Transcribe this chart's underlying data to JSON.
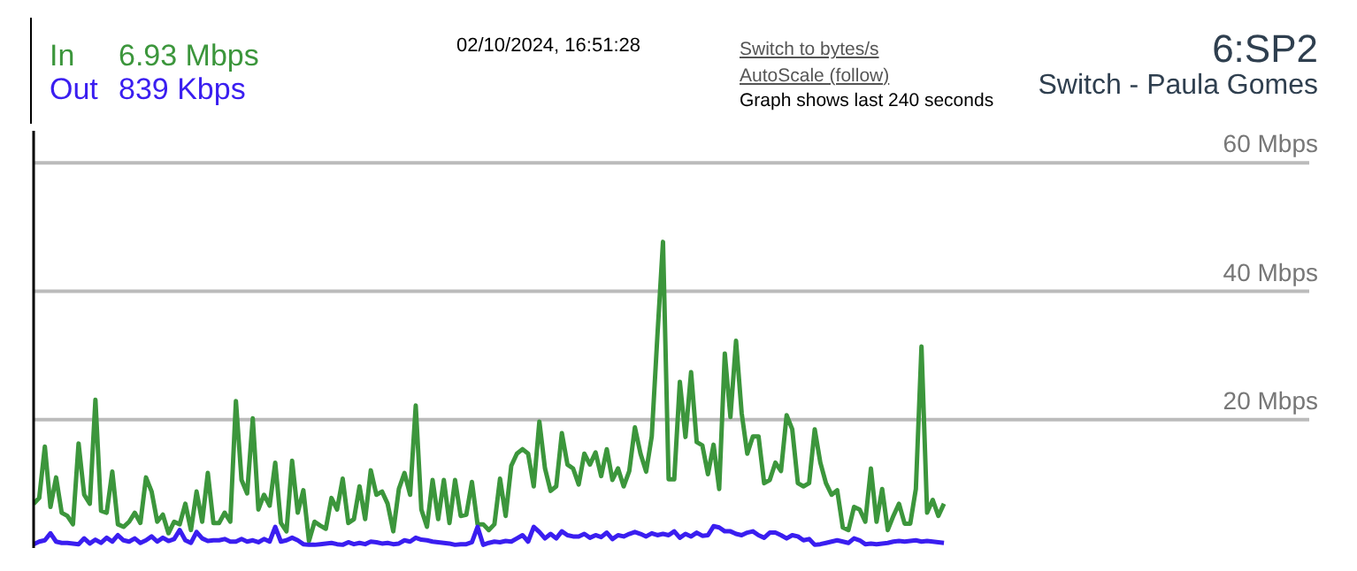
{
  "chart_data": {
    "type": "line",
    "title": "6:SP2",
    "subtitle": "Switch - Paula Gomes",
    "annotations": [
      "6.93 Mbps",
      "839 Kbps",
      "02/10/2024, 16:51:28",
      "Switch to bytes/s",
      "AutoScale (follow)",
      "Graph shows last 240 seconds"
    ],
    "categories": [
      null,
      null,
      null,
      null,
      null,
      null,
      null,
      null,
      null,
      null,
      null,
      null,
      null,
      null,
      null,
      null,
      null,
      null,
      null,
      null,
      null,
      null,
      null,
      null,
      null,
      null,
      null,
      null,
      null,
      null,
      null,
      null,
      null,
      null,
      null,
      null,
      null,
      null,
      null,
      null,
      null,
      null,
      null,
      null,
      null,
      null,
      null,
      null,
      null,
      null,
      null,
      null,
      null,
      null,
      null,
      null,
      null,
      null,
      null,
      null,
      null,
      null,
      null,
      null,
      null,
      null,
      null,
      null,
      null,
      null,
      null,
      null,
      null,
      null,
      null,
      null,
      null,
      null,
      null,
      null,
      null,
      null,
      null,
      null,
      null,
      null,
      null,
      null,
      null,
      null,
      null,
      null,
      null,
      null,
      null,
      null,
      null,
      null,
      null,
      null,
      null,
      null,
      null,
      null,
      null,
      null,
      null,
      null,
      null,
      null,
      null,
      null,
      null,
      null,
      null,
      null,
      null,
      null,
      null,
      null,
      null,
      null,
      null,
      null,
      null,
      null,
      null,
      null,
      null,
      null,
      null,
      null,
      null,
      null,
      null,
      null,
      null,
      null,
      null,
      null,
      null,
      null,
      null,
      null,
      null,
      null,
      null,
      null,
      null,
      null,
      null,
      null,
      null,
      null,
      null,
      null,
      null,
      null,
      null,
      null,
      null,
      null,
      null,
      null,
      null,
      null,
      null,
      null,
      null,
      null,
      null,
      null,
      null,
      null,
      null,
      null,
      null,
      null,
      null,
      null,
      null,
      null,
      null,
      null,
      null,
      null,
      null,
      null,
      null,
      null,
      null,
      null,
      null,
      null,
      null,
      null,
      null,
      null,
      null,
      null,
      null,
      null,
      null,
      null,
      null,
      null,
      null,
      null,
      null,
      null,
      null,
      null,
      null,
      null,
      null,
      null,
      null,
      null,
      null,
      null,
      null,
      null,
      null,
      null,
      null,
      null,
      null,
      null
    ],
    "series": [
      {
        "name": "In",
        "color": "#3c963c",
        "values": [
          6.9,
          7.8,
          15.8,
          6.4,
          11,
          5.5,
          5,
          3.7,
          16.3,
          8.3,
          6.9,
          23.1,
          5.8,
          5.5,
          11.9,
          3.7,
          3.3,
          4.1,
          5.5,
          3.9,
          11,
          8.8,
          4.1,
          5.2,
          2.3,
          4.1,
          3.7,
          6.9,
          2.8,
          8.8,
          4.1,
          11.7,
          3.9,
          3.9,
          5.5,
          4.1,
          22.9,
          10.6,
          8.5,
          20.2,
          6,
          8.3,
          6.6,
          13.3,
          3.9,
          2.6,
          13.6,
          5.5,
          9,
          1.1,
          4.1,
          3.5,
          3,
          7.8,
          6,
          10.8,
          3.9,
          4.5,
          9.6,
          4.5,
          12.1,
          8.3,
          8.8,
          6.9,
          2.6,
          9.2,
          11.7,
          8.3,
          22.2,
          6,
          3.3,
          10.6,
          4.5,
          10.6,
          3.9,
          10.6,
          5,
          5.2,
          10.3,
          3.7,
          3.7,
          2.8,
          3.7,
          10.8,
          5,
          12.8,
          14.7,
          15.4,
          14.7,
          9.6,
          19.7,
          12.4,
          8.9,
          9.6,
          17.9,
          13,
          12.4,
          9.9,
          14.7,
          13,
          14.9,
          11.2,
          15.4,
          10.6,
          12.4,
          9.6,
          12,
          18.8,
          14.7,
          11.9,
          17.4,
          33,
          47.7,
          10.7,
          10.7,
          25.9,
          17.3,
          27.4,
          16.5,
          16,
          11.5,
          16.1,
          9.2,
          30.3,
          20.4,
          32.3,
          21,
          14.7,
          17.4,
          17.4,
          10.1,
          10.6,
          13.3,
          12,
          20.7,
          18.5,
          10.1,
          9.6,
          10.1,
          18.5,
          13.3,
          10.1,
          8.3,
          9,
          3.2,
          2.8,
          6.4,
          6,
          4.1,
          12.4,
          4.1,
          9.2,
          2.8,
          5,
          6.9,
          3.8,
          3.8,
          9.2,
          31.4,
          5.5,
          7.5,
          5,
          6.9,
          null,
          null,
          null,
          null,
          null,
          null,
          null,
          null,
          null,
          null,
          null,
          null,
          null,
          null,
          null,
          null,
          null,
          null,
          null,
          null,
          null,
          null,
          null,
          null,
          null,
          null,
          null,
          null,
          null,
          null,
          null,
          null,
          null,
          null,
          null,
          null,
          null,
          null,
          null,
          null,
          null,
          null,
          null,
          null,
          null,
          null,
          null,
          null,
          null,
          null,
          null,
          null,
          null,
          null,
          null,
          null,
          null,
          null,
          null,
          null,
          null,
          null,
          null,
          null,
          null
        ]
      },
      {
        "name": "Out",
        "color": "#3a1ef0",
        "values": [
          0.6,
          1.0,
          1.2,
          2.3,
          1.0,
          0.8,
          0.8,
          0.7,
          0.6,
          1.5,
          0.7,
          1.3,
          0.8,
          1.6,
          1.0,
          2.0,
          1.2,
          1.0,
          1.5,
          0.8,
          1.2,
          1.8,
          1.0,
          1.6,
          1.1,
          1.4,
          2.8,
          1.2,
          0.8,
          2.5,
          1.5,
          1.1,
          1.2,
          1.2,
          1.4,
          1.0,
          1.0,
          1.4,
          1.0,
          1.2,
          0.9,
          1.4,
          1.0,
          3.3,
          1.0,
          1.2,
          1.6,
          1.2,
          0.6,
          0.5,
          0.5,
          0.6,
          0.7,
          0.8,
          0.6,
          0.5,
          0.9,
          0.6,
          0.8,
          0.6,
          1.0,
          0.9,
          0.7,
          0.8,
          0.6,
          0.7,
          1.2,
          1.0,
          1.6,
          1.3,
          1.2,
          1.0,
          0.9,
          0.8,
          0.7,
          0.5,
          0.6,
          0.6,
          0.9,
          3.3,
          0.5,
          0.8,
          1.0,
          0.9,
          1.1,
          1.0,
          1.5,
          2.0,
          1.0,
          3.3,
          2.5,
          1.5,
          2.2,
          1.5,
          2.6,
          2.0,
          1.8,
          1.8,
          2.2,
          1.6,
          2.0,
          1.7,
          2.4,
          1.4,
          2.0,
          1.8,
          2.2,
          2.5,
          2.2,
          1.8,
          2.3,
          2.0,
          2.2,
          2.0,
          2.6,
          1.6,
          2.2,
          1.8,
          2.4,
          1.9,
          2.0,
          3.4,
          3.2,
          2.6,
          2.6,
          2.2,
          2.0,
          2.4,
          2.6,
          2.0,
          1.6,
          2.4,
          2.4,
          2.0,
          1.5,
          2.0,
          1.8,
          1.2,
          1.4,
          0.5,
          0.6,
          0.8,
          1.0,
          1.2,
          1.0,
          0.8,
          1.5,
          1.2,
          0.6,
          0.7,
          0.6,
          0.7,
          0.8,
          1.0,
          1.1,
          1.0,
          1.1,
          1.2,
          1.0,
          1.1,
          1.0,
          0.9,
          0.8,
          null,
          null,
          null,
          null,
          null,
          null,
          null,
          null,
          null,
          null,
          null,
          null,
          null,
          null,
          null,
          null,
          null,
          null,
          null,
          null,
          null,
          null,
          null,
          null,
          null,
          null,
          null,
          null,
          null,
          null,
          null,
          null,
          null,
          null,
          null,
          null,
          null,
          null,
          null,
          null,
          null,
          null,
          null,
          null,
          null,
          null,
          null,
          null,
          null,
          null,
          null,
          null,
          null,
          null,
          null,
          null,
          null,
          null,
          null,
          null,
          null,
          null,
          null,
          null,
          null
        ]
      }
    ],
    "ylim": [
      0,
      65
    ],
    "yticks": [
      {
        "value": 20,
        "label": "20 Mbps"
      },
      {
        "value": 40,
        "label": "40 Mbps"
      },
      {
        "value": 60,
        "label": "60 Mbps"
      }
    ],
    "grid": "y",
    "legend": "top left",
    "marker": "none",
    "line_style": "solid"
  }
}
